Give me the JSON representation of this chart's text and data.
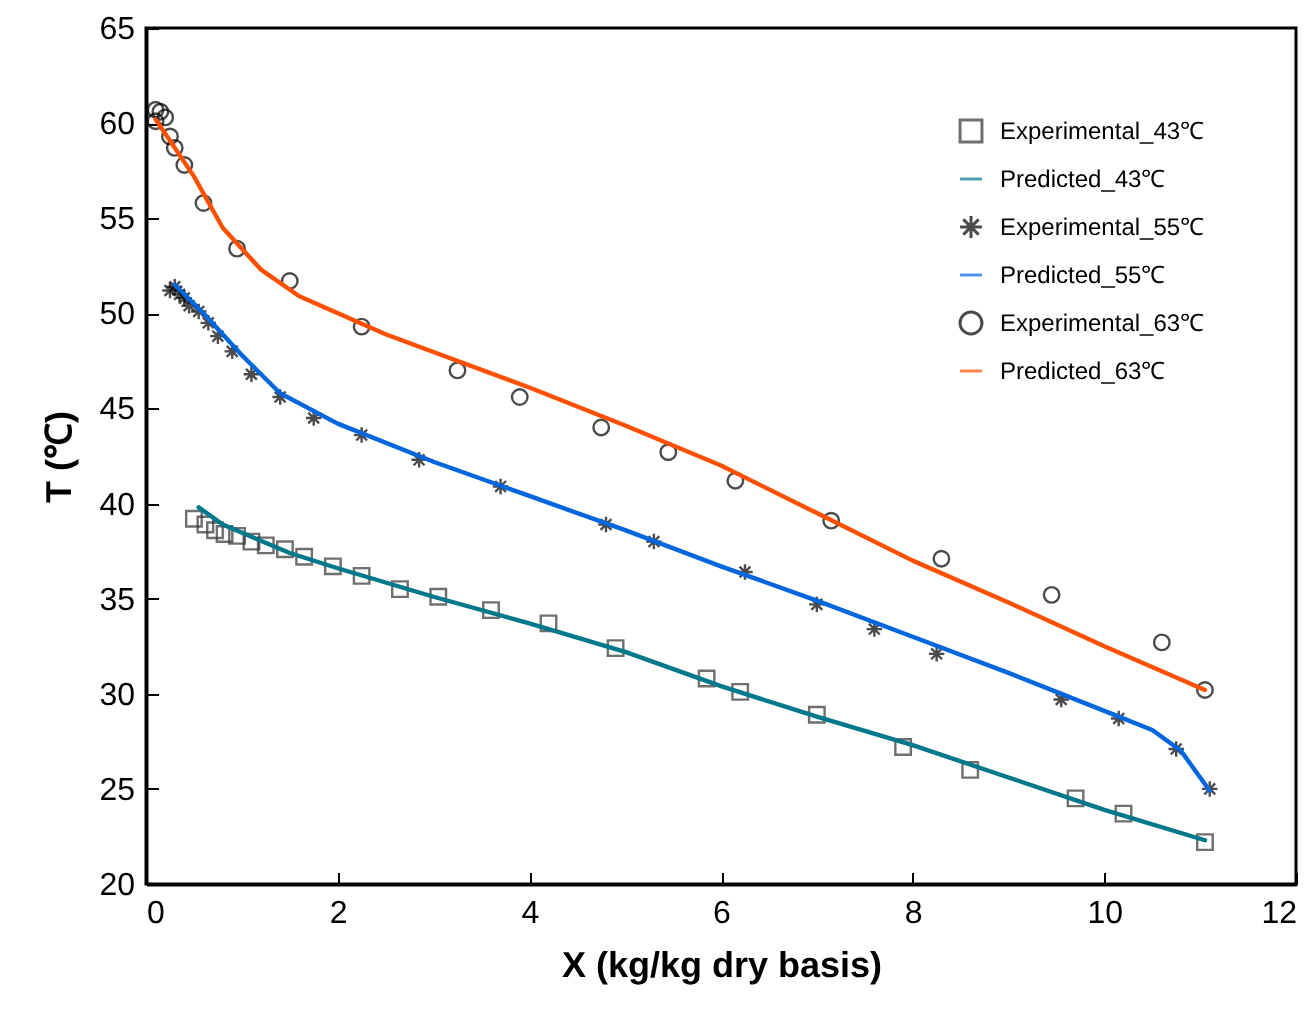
{
  "chart_data": {
    "type": "scatter",
    "xlabel": "X (kg/kg dry basis)",
    "ylabel": "T (℃)",
    "xlim": [
      0,
      12
    ],
    "ylim": [
      20,
      65
    ],
    "xticks": [
      0,
      2,
      4,
      6,
      8,
      10,
      12
    ],
    "yticks": [
      20,
      25,
      30,
      35,
      40,
      45,
      50,
      55,
      60,
      65
    ],
    "legend": "top right",
    "series": [
      {
        "name": "Experimental_43℃",
        "marker": "square",
        "color": "#333333",
        "x": [
          0.5,
          0.62,
          0.72,
          0.82,
          0.95,
          1.1,
          1.25,
          1.45,
          1.65,
          1.95,
          2.25,
          2.65,
          3.05,
          3.6,
          4.2,
          4.9,
          5.85,
          6.2,
          7.0,
          7.9,
          8.6,
          9.7,
          10.2,
          11.05
        ],
        "values": [
          39.2,
          38.9,
          38.6,
          38.4,
          38.3,
          38.0,
          37.8,
          37.6,
          37.2,
          36.7,
          36.2,
          35.5,
          35.1,
          34.4,
          33.7,
          32.4,
          30.8,
          30.1,
          28.9,
          27.2,
          26.0,
          24.5,
          23.7,
          22.2
        ]
      },
      {
        "name": "Predicted_43℃",
        "type": "line",
        "line_style": "solid",
        "color": "#00788c",
        "x": [
          0.55,
          0.8,
          1.5,
          2,
          3,
          4,
          5,
          6,
          7,
          8,
          9,
          10,
          11.05
        ],
        "values": [
          39.8,
          38.9,
          37.4,
          36.6,
          35.1,
          33.7,
          32.2,
          30.4,
          28.8,
          27.3,
          25.6,
          23.9,
          22.3
        ]
      },
      {
        "name": "Experimental_55℃",
        "marker": "cross",
        "color": "#000000",
        "x": [
          0.25,
          0.3,
          0.35,
          0.4,
          0.45,
          0.55,
          0.65,
          0.75,
          0.9,
          1.1,
          1.4,
          1.75,
          2.25,
          2.85,
          3.7,
          4.8,
          5.3,
          6.25,
          7.0,
          7.6,
          8.25,
          9.55,
          10.15,
          10.75,
          11.1
        ],
        "values": [
          51.2,
          51.4,
          51.0,
          50.8,
          50.4,
          50.1,
          49.5,
          48.8,
          48.0,
          46.8,
          45.6,
          44.5,
          43.6,
          42.3,
          40.9,
          38.9,
          38.0,
          36.4,
          34.7,
          33.4,
          32.1,
          29.7,
          28.7,
          27.1,
          25.0
        ]
      },
      {
        "name": "Predicted_55℃",
        "type": "line",
        "line_style": "solid",
        "color": "#0066dd",
        "x": [
          0.3,
          0.6,
          1.0,
          1.4,
          2,
          3,
          4,
          5,
          6,
          7,
          8,
          9,
          10,
          10.5,
          10.8,
          11.0,
          11.1
        ],
        "values": [
          51.5,
          50.0,
          47.8,
          45.8,
          44.2,
          42.2,
          40.4,
          38.6,
          36.7,
          34.9,
          33.0,
          31.1,
          29.1,
          28.1,
          27.0,
          25.6,
          24.9
        ]
      },
      {
        "name": "Experimental_63℃",
        "marker": "circle",
        "color": "#000000",
        "x": [
          0.1,
          0.15,
          0.2,
          0.1,
          0.25,
          0.3,
          0.4,
          0.6,
          0.95,
          1.5,
          2.25,
          3.25,
          3.9,
          4.75,
          5.45,
          6.15,
          7.15,
          8.3,
          9.45,
          10.6,
          11.05
        ],
        "values": [
          60.7,
          60.6,
          60.3,
          60.1,
          59.3,
          58.7,
          57.8,
          55.8,
          53.4,
          51.7,
          49.3,
          47.0,
          45.6,
          44.0,
          42.7,
          41.2,
          39.1,
          37.1,
          35.2,
          32.7,
          30.2
        ]
      },
      {
        "name": "Predicted_63℃",
        "type": "line",
        "line_style": "solid",
        "color": "#ff5000",
        "x": [
          0.1,
          0.5,
          0.8,
          1.2,
          1.6,
          2.5,
          4,
          5,
          6,
          7,
          8,
          9,
          10,
          11.05
        ],
        "values": [
          60.2,
          57.2,
          54.5,
          52.3,
          50.9,
          48.9,
          46.1,
          44.1,
          42.0,
          39.5,
          37.0,
          34.8,
          32.5,
          30.2
        ]
      }
    ]
  }
}
